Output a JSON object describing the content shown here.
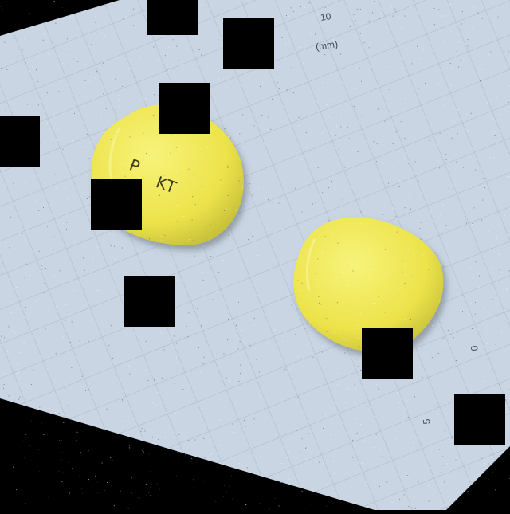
{
  "image": {
    "subject": "two yellow pills on a millimeter grid sheet",
    "colors": {
      "background": "#000000",
      "sheet": "#c9d5e2",
      "grid_line": "#aebccb",
      "pill": "#f0ea50",
      "pill_shadow": "#c9c23a",
      "occluder": "#000000"
    }
  },
  "scale_marks": {
    "top_number": "10",
    "unit": "(mm)",
    "side_numbers": [
      "0",
      "5"
    ]
  },
  "pills": [
    {
      "imprint_symbol": "P",
      "imprint_text": "KT"
    },
    {
      "imprint_text": ""
    }
  ]
}
